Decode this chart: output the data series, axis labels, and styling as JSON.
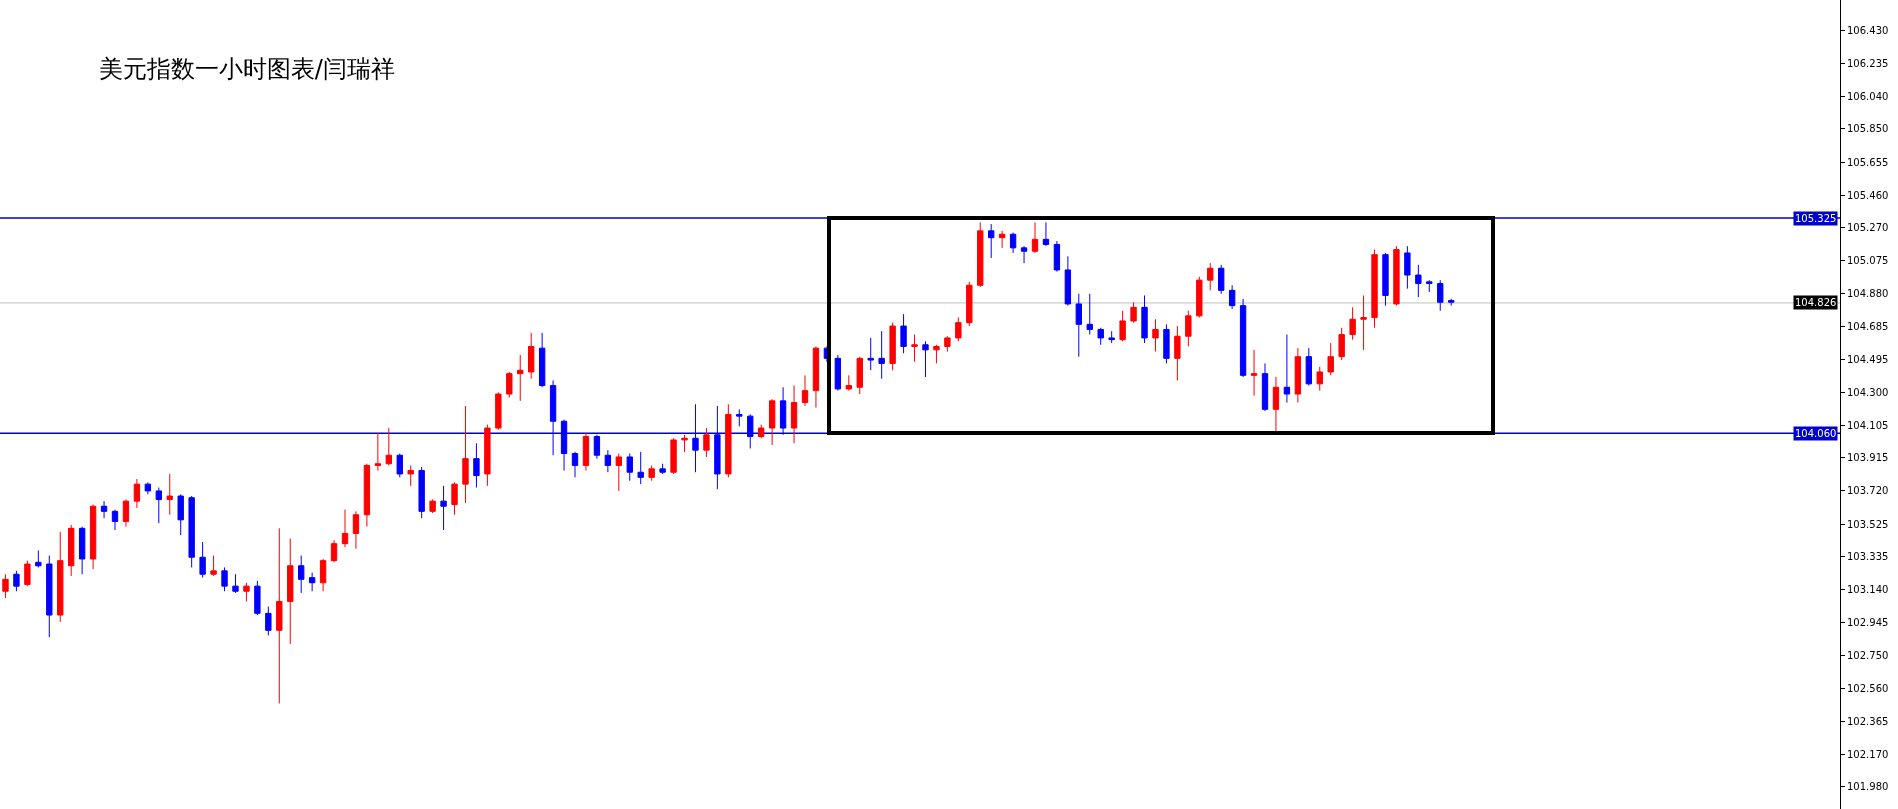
{
  "chart_data": {
    "type": "candlestick",
    "title": "美元指数一小时图表/闫瑞祥",
    "categories": [
      null,
      null,
      null,
      null,
      null,
      null,
      null,
      null,
      null,
      null,
      null,
      null,
      null,
      null,
      null,
      null,
      null,
      null,
      null,
      null,
      null,
      null,
      null,
      null,
      null,
      null,
      null,
      null,
      null,
      null,
      null,
      null,
      null,
      null,
      null,
      null,
      null,
      null,
      null,
      null,
      null,
      null,
      null,
      null,
      null,
      null,
      null,
      null,
      null,
      null,
      null,
      null,
      null,
      null,
      null,
      null,
      null,
      null,
      null,
      null,
      null,
      null,
      null,
      null,
      null,
      null,
      null,
      null,
      null,
      null,
      null,
      null,
      null,
      null,
      null,
      null,
      null,
      null,
      null,
      null,
      null,
      null,
      null,
      null,
      null,
      null,
      null,
      null,
      null,
      null,
      null,
      null,
      null,
      null,
      null,
      null,
      null,
      null,
      null,
      null,
      null,
      null,
      null,
      null,
      null,
      null,
      null,
      null,
      null,
      null,
      null,
      null,
      null,
      null,
      null,
      null,
      null,
      null,
      null,
      null,
      null,
      null,
      null,
      null,
      null,
      null,
      null,
      null,
      null,
      null,
      null,
      null,
      null,
      null,
      null,
      null,
      null,
      null,
      null,
      null,
      null,
      null,
      null,
      null,
      null,
      null,
      null,
      null,
      null,
      null,
      null,
      null,
      null,
      null,
      null,
      null,
      null,
      null,
      null,
      null,
      null,
      null,
      null,
      null,
      null,
      null,
      null,
      null
    ],
    "ohlc": [
      [
        103.13,
        103.23,
        103.09,
        103.2
      ],
      [
        103.23,
        103.25,
        103.13,
        103.16
      ],
      [
        103.17,
        103.31,
        103.16,
        103.29
      ],
      [
        103.3,
        103.37,
        103.27,
        103.28
      ],
      [
        103.29,
        103.34,
        102.86,
        102.99
      ],
      [
        102.99,
        103.48,
        102.95,
        103.31
      ],
      [
        103.28,
        103.52,
        103.22,
        103.5
      ],
      [
        103.5,
        103.51,
        103.23,
        103.32
      ],
      [
        103.32,
        103.64,
        103.26,
        103.63
      ],
      [
        103.63,
        103.66,
        103.56,
        103.6
      ],
      [
        103.6,
        103.61,
        103.49,
        103.54
      ],
      [
        103.54,
        103.67,
        103.51,
        103.66
      ],
      [
        103.66,
        103.79,
        103.62,
        103.76
      ],
      [
        103.76,
        103.77,
        103.7,
        103.72
      ],
      [
        103.72,
        103.74,
        103.53,
        103.67
      ],
      [
        103.67,
        103.82,
        103.58,
        103.69
      ],
      [
        103.69,
        103.7,
        103.46,
        103.55
      ],
      [
        103.68,
        103.69,
        103.27,
        103.33
      ],
      [
        103.33,
        103.42,
        103.21,
        103.23
      ],
      [
        103.23,
        103.34,
        103.22,
        103.25
      ],
      [
        103.25,
        103.27,
        103.13,
        103.16
      ],
      [
        103.16,
        103.23,
        103.12,
        103.13
      ],
      [
        103.13,
        103.18,
        103.07,
        103.16
      ],
      [
        103.16,
        103.19,
        102.99,
        103.0
      ],
      [
        103.0,
        103.04,
        102.87,
        102.9
      ],
      [
        102.9,
        103.5,
        102.47,
        103.07
      ],
      [
        103.07,
        103.44,
        102.82,
        103.28
      ],
      [
        103.28,
        103.34,
        103.12,
        103.2
      ],
      [
        103.21,
        103.24,
        103.13,
        103.18
      ],
      [
        103.18,
        103.32,
        103.13,
        103.31
      ],
      [
        103.31,
        103.43,
        103.3,
        103.41
      ],
      [
        103.41,
        103.61,
        103.39,
        103.47
      ],
      [
        103.47,
        103.6,
        103.38,
        103.58
      ],
      [
        103.58,
        103.88,
        103.51,
        103.87
      ],
      [
        103.87,
        104.06,
        103.84,
        103.88
      ],
      [
        103.88,
        104.09,
        103.87,
        103.93
      ],
      [
        103.93,
        103.94,
        103.8,
        103.82
      ],
      [
        103.82,
        103.87,
        103.75,
        103.84
      ],
      [
        103.84,
        103.86,
        103.56,
        103.6
      ],
      [
        103.6,
        103.67,
        103.59,
        103.66
      ],
      [
        103.66,
        103.75,
        103.49,
        103.63
      ],
      [
        103.64,
        103.77,
        103.58,
        103.76
      ],
      [
        103.76,
        104.22,
        103.65,
        103.91
      ],
      [
        103.91,
        104.0,
        103.74,
        103.81
      ],
      [
        103.82,
        104.11,
        103.75,
        104.09
      ],
      [
        104.09,
        104.3,
        104.08,
        104.29
      ],
      [
        104.29,
        104.42,
        104.27,
        104.41
      ],
      [
        104.41,
        104.52,
        104.25,
        104.43
      ],
      [
        104.42,
        104.65,
        104.38,
        104.57
      ],
      [
        104.56,
        104.65,
        104.33,
        104.34
      ],
      [
        104.34,
        104.37,
        103.93,
        104.13
      ],
      [
        104.13,
        104.14,
        103.84,
        103.94
      ],
      [
        103.94,
        103.95,
        103.8,
        103.87
      ],
      [
        103.87,
        104.06,
        103.84,
        104.04
      ],
      [
        104.04,
        104.05,
        103.91,
        103.93
      ],
      [
        103.93,
        103.96,
        103.83,
        103.87
      ],
      [
        103.87,
        103.94,
        103.72,
        103.92
      ],
      [
        103.92,
        103.94,
        103.78,
        103.83
      ],
      [
        103.83,
        103.95,
        103.76,
        103.8
      ],
      [
        103.8,
        103.87,
        103.78,
        103.85
      ],
      [
        103.85,
        103.88,
        103.82,
        103.83
      ],
      [
        103.83,
        104.03,
        103.82,
        104.02
      ],
      [
        104.02,
        104.05,
        103.95,
        104.03
      ],
      [
        104.03,
        104.23,
        103.83,
        103.96
      ],
      [
        103.96,
        104.09,
        103.92,
        104.05
      ],
      [
        104.05,
        104.22,
        103.73,
        103.82
      ],
      [
        103.82,
        104.23,
        103.8,
        104.17
      ],
      [
        104.17,
        104.2,
        104.1,
        104.16
      ],
      [
        104.16,
        104.17,
        103.97,
        104.04
      ],
      [
        104.04,
        104.11,
        104.03,
        104.09
      ],
      [
        104.09,
        104.26,
        103.99,
        104.25
      ],
      [
        104.25,
        104.33,
        104.05,
        104.09
      ],
      [
        104.09,
        104.34,
        104.0,
        104.24
      ],
      [
        104.24,
        104.4,
        104.22,
        104.31
      ],
      [
        104.31,
        104.57,
        104.21,
        104.56
      ],
      [
        104.56,
        104.57,
        104.48,
        104.5
      ],
      [
        104.5,
        104.52,
        104.31,
        104.32
      ],
      [
        104.32,
        104.4,
        104.31,
        104.34
      ],
      [
        104.33,
        104.51,
        104.29,
        104.5
      ],
      [
        104.5,
        104.62,
        104.43,
        104.49
      ],
      [
        104.5,
        104.66,
        104.38,
        104.47
      ],
      [
        104.47,
        104.71,
        104.43,
        104.69
      ],
      [
        104.69,
        104.76,
        104.53,
        104.57
      ],
      [
        104.57,
        104.64,
        104.48,
        104.58
      ],
      [
        104.58,
        104.6,
        104.39,
        104.55
      ],
      [
        104.55,
        104.58,
        104.47,
        104.57
      ],
      [
        104.57,
        104.63,
        104.54,
        104.62
      ],
      [
        104.62,
        104.74,
        104.6,
        104.71
      ],
      [
        104.71,
        104.95,
        104.69,
        104.93
      ],
      [
        104.93,
        105.3,
        104.92,
        105.25
      ],
      [
        105.25,
        105.29,
        105.09,
        105.21
      ],
      [
        105.21,
        105.25,
        105.15,
        105.23
      ],
      [
        105.23,
        105.24,
        105.12,
        105.15
      ],
      [
        105.15,
        105.16,
        105.06,
        105.13
      ],
      [
        105.13,
        105.3,
        105.12,
        105.2
      ],
      [
        105.2,
        105.3,
        105.16,
        105.17
      ],
      [
        105.17,
        105.19,
        105.01,
        105.02
      ],
      [
        105.02,
        105.1,
        104.81,
        104.82
      ],
      [
        104.82,
        104.88,
        104.51,
        104.7
      ],
      [
        104.7,
        104.88,
        104.64,
        104.67
      ],
      [
        104.67,
        104.68,
        104.58,
        104.62
      ],
      [
        104.62,
        104.66,
        104.59,
        104.61
      ],
      [
        104.61,
        104.78,
        104.6,
        104.72
      ],
      [
        104.72,
        104.83,
        104.71,
        104.8
      ],
      [
        104.8,
        104.87,
        104.59,
        104.62
      ],
      [
        104.62,
        104.73,
        104.54,
        104.67
      ],
      [
        104.67,
        104.7,
        104.47,
        104.5
      ],
      [
        104.5,
        104.69,
        104.37,
        104.63
      ],
      [
        104.63,
        104.78,
        104.57,
        104.75
      ],
      [
        104.75,
        104.98,
        104.74,
        104.96
      ],
      [
        104.96,
        105.06,
        104.9,
        105.03
      ],
      [
        105.03,
        105.05,
        104.88,
        104.9
      ],
      [
        104.9,
        104.93,
        104.79,
        104.81
      ],
      [
        104.81,
        104.85,
        104.39,
        104.4
      ],
      [
        104.4,
        104.55,
        104.28,
        104.41
      ],
      [
        104.41,
        104.47,
        104.19,
        104.2
      ],
      [
        104.2,
        104.39,
        104.07,
        104.33
      ],
      [
        104.33,
        104.64,
        104.24,
        104.29
      ],
      [
        104.29,
        104.56,
        104.24,
        104.51
      ],
      [
        104.51,
        104.56,
        104.34,
        104.35
      ],
      [
        104.35,
        104.45,
        104.31,
        104.42
      ],
      [
        104.42,
        104.59,
        104.4,
        104.51
      ],
      [
        104.51,
        104.68,
        104.49,
        104.64
      ],
      [
        104.64,
        104.8,
        104.61,
        104.73
      ],
      [
        104.73,
        104.87,
        104.55,
        104.74
      ],
      [
        104.74,
        105.14,
        104.68,
        105.11
      ],
      [
        105.11,
        105.12,
        104.81,
        104.87
      ],
      [
        104.82,
        105.16,
        104.81,
        105.14
      ],
      [
        105.12,
        105.16,
        104.91,
        104.99
      ],
      [
        104.99,
        105.05,
        104.86,
        104.94
      ],
      [
        104.95,
        104.96,
        104.89,
        104.94
      ],
      [
        104.94,
        104.96,
        104.78,
        104.83
      ],
      [
        104.84,
        104.85,
        104.81,
        104.83
      ],
      null,
      null,
      null,
      null,
      null,
      null,
      null,
      null,
      null,
      null,
      null,
      null,
      null,
      null,
      null,
      null,
      null,
      null,
      null,
      null,
      null,
      null,
      null,
      null,
      null,
      null,
      null,
      null,
      null,
      null,
      null,
      null,
      null,
      null,
      null
    ],
    "ylim": [
      101.849,
      106.608
    ],
    "yticks": [
      {
        "value": 101.98,
        "label": "101.980"
      },
      {
        "value": 102.17,
        "label": "102.170"
      },
      102.365,
      {
        "value": 102.56,
        "label": "102.560"
      },
      {
        "value": 102.75,
        "label": "102.750"
      },
      102.945,
      {
        "value": 103.14,
        "label": "103.140"
      },
      103.335,
      103.525,
      {
        "value": 103.72,
        "label": "103.720"
      },
      103.915,
      104.105,
      {
        "value": 104.3,
        "label": "104.300"
      },
      104.495,
      104.685,
      {
        "value": 104.88,
        "label": "104.880"
      },
      105.075,
      {
        "value": 105.27,
        "label": "105.270"
      },
      {
        "value": 105.46,
        "label": "105.460"
      },
      105.655,
      {
        "value": 105.85,
        "label": "105.850"
      },
      {
        "value": 106.04,
        "label": "106.040"
      },
      106.235,
      {
        "value": 106.43,
        "label": "106.430"
      }
    ],
    "ref_lines": [
      {
        "axis": "y",
        "value": 105.325,
        "label": "105.325",
        "color": "#0000cc"
      },
      {
        "axis": "y",
        "value": 104.06,
        "label": "104.060",
        "color": "#0000cc"
      },
      {
        "axis": "y",
        "value": 104.826,
        "label": "104.826",
        "color": "#c0c0c0"
      }
    ],
    "grid": false,
    "tick_labels": "y"
  }
}
